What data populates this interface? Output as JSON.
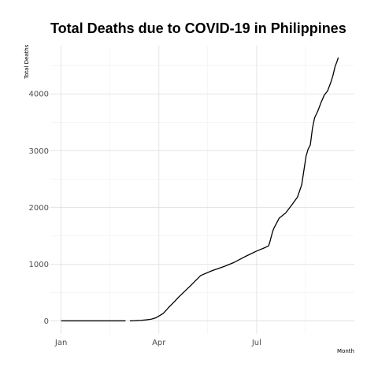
{
  "chart_data": {
    "type": "line",
    "title": "Total Deaths due to COVID-19 in Philippines",
    "xlabel": "Month",
    "ylabel": "Total Deaths",
    "x_ticks": [
      {
        "label": "Jan",
        "date": "2020-01-01"
      },
      {
        "label": "Apr",
        "date": "2020-04-01"
      },
      {
        "label": "Jul",
        "date": "2020-07-01"
      }
    ],
    "y_ticks": [
      0,
      1000,
      2000,
      3000,
      4000
    ],
    "xlim": [
      "2019-12-22",
      "2020-09-30"
    ],
    "ylim": [
      -230,
      4850
    ],
    "grid": true,
    "colors": {
      "line": "#000000",
      "grid_major": "#dedede",
      "grid_minor": "#ececec"
    },
    "series": [
      {
        "segments": [
          {
            "x": [
              "2020-01-01",
              "2020-01-31",
              "2020-02-29",
              "2020-03-01"
            ],
            "y": [
              0,
              0,
              0,
              0
            ]
          },
          {
            "x": [
              "2020-03-05",
              "2020-03-10",
              "2020-03-15",
              "2020-03-20",
              "2020-03-25",
              "2020-03-29",
              "2020-04-01",
              "2020-04-05",
              "2020-04-08",
              "2020-04-10",
              "2020-04-15",
              "2020-04-20",
              "2020-04-25",
              "2020-05-01",
              "2020-05-10",
              "2020-05-20",
              "2020-06-01",
              "2020-06-10",
              "2020-06-20",
              "2020-07-01",
              "2020-07-08",
              "2020-07-12",
              "2020-07-13",
              "2020-07-16",
              "2020-07-17",
              "2020-07-22",
              "2020-07-28",
              "2020-08-03",
              "2020-08-08",
              "2020-08-12",
              "2020-08-14",
              "2020-08-16",
              "2020-08-18",
              "2020-08-20",
              "2020-08-22",
              "2020-08-24",
              "2020-08-27",
              "2020-08-30",
              "2020-09-02",
              "2020-09-05",
              "2020-09-08",
              "2020-09-10",
              "2020-09-12",
              "2020-09-14",
              "2020-09-15"
            ],
            "y": [
              0,
              2,
              8,
              17,
              30,
              52,
              85,
              130,
              190,
              235,
              330,
              430,
              520,
              630,
              800,
              880,
              960,
              1030,
              1130,
              1230,
              1285,
              1320,
              1370,
              1580,
              1630,
              1810,
              1900,
              2050,
              2180,
              2400,
              2650,
              2900,
              3030,
              3100,
              3400,
              3580,
              3700,
              3850,
              3980,
              4050,
              4200,
              4320,
              4480,
              4580,
              4640
            ]
          }
        ]
      }
    ]
  }
}
